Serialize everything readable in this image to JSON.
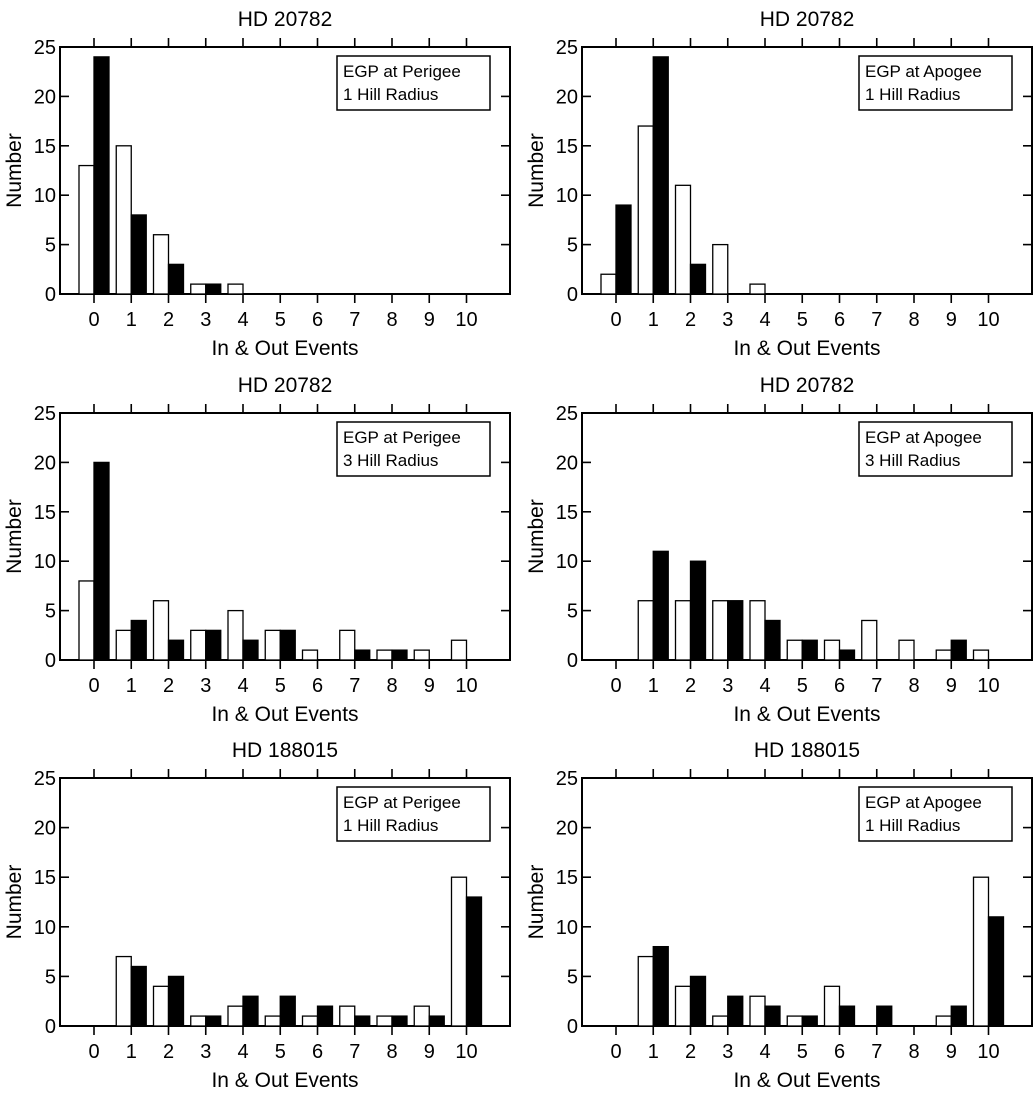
{
  "figure": {
    "bar_colors": {
      "open": "#ffffff",
      "filled": "#000000"
    }
  },
  "chart_data": [
    {
      "type": "bar",
      "title": "HD 20782",
      "xlabel": "In & Out Events",
      "ylabel": "Number",
      "ylim": [
        0,
        25
      ],
      "yticks": [
        0,
        5,
        10,
        15,
        20,
        25
      ],
      "categories": [
        "0",
        "1",
        "2",
        "3",
        "4",
        "5",
        "6",
        "7",
        "8",
        "9",
        "10"
      ],
      "legend": [
        "EGP at Perigee",
        "1 Hill Radius"
      ],
      "legend_position": "top-right",
      "series": [
        {
          "fill": "open",
          "values": [
            13,
            15,
            6,
            1,
            1,
            0,
            0,
            0,
            0,
            0,
            0
          ]
        },
        {
          "fill": "filled",
          "values": [
            24,
            8,
            3,
            1,
            0,
            0,
            0,
            0,
            0,
            0,
            0
          ]
        }
      ]
    },
    {
      "type": "bar",
      "title": "HD 20782",
      "xlabel": "In & Out Events",
      "ylabel": "Number",
      "ylim": [
        0,
        25
      ],
      "yticks": [
        0,
        5,
        10,
        15,
        20,
        25
      ],
      "categories": [
        "0",
        "1",
        "2",
        "3",
        "4",
        "5",
        "6",
        "7",
        "8",
        "9",
        "10"
      ],
      "legend": [
        "EGP at Apogee",
        "1 Hill Radius"
      ],
      "legend_position": "top-right",
      "series": [
        {
          "fill": "open",
          "values": [
            2,
            17,
            11,
            5,
            1,
            0,
            0,
            0,
            0,
            0,
            0
          ]
        },
        {
          "fill": "filled",
          "values": [
            9,
            24,
            3,
            0,
            0,
            0,
            0,
            0,
            0,
            0,
            0
          ]
        }
      ]
    },
    {
      "type": "bar",
      "title": "HD 20782",
      "xlabel": "In & Out Events",
      "ylabel": "Number",
      "ylim": [
        0,
        25
      ],
      "yticks": [
        0,
        5,
        10,
        15,
        20,
        25
      ],
      "categories": [
        "0",
        "1",
        "2",
        "3",
        "4",
        "5",
        "6",
        "7",
        "8",
        "9",
        "10"
      ],
      "legend": [
        "EGP at Perigee",
        "3 Hill Radius"
      ],
      "legend_position": "top-right",
      "series": [
        {
          "fill": "open",
          "values": [
            8,
            3,
            6,
            3,
            5,
            3,
            1,
            3,
            1,
            1,
            2
          ]
        },
        {
          "fill": "filled",
          "values": [
            20,
            4,
            2,
            3,
            2,
            3,
            0,
            1,
            1,
            0,
            0
          ]
        }
      ]
    },
    {
      "type": "bar",
      "title": "HD 20782",
      "xlabel": "In & Out Events",
      "ylabel": "Number",
      "ylim": [
        0,
        25
      ],
      "yticks": [
        0,
        5,
        10,
        15,
        20,
        25
      ],
      "categories": [
        "0",
        "1",
        "2",
        "3",
        "4",
        "5",
        "6",
        "7",
        "8",
        "9",
        "10"
      ],
      "legend": [
        "EGP at Apogee",
        "3 Hill Radius"
      ],
      "legend_position": "top-right",
      "series": [
        {
          "fill": "open",
          "values": [
            0,
            6,
            6,
            6,
            6,
            2,
            2,
            4,
            2,
            1,
            1
          ]
        },
        {
          "fill": "filled",
          "values": [
            0,
            11,
            10,
            6,
            4,
            2,
            1,
            0,
            0,
            2,
            0
          ]
        }
      ]
    },
    {
      "type": "bar",
      "title": "HD 188015",
      "xlabel": "In & Out Events",
      "ylabel": "Number",
      "ylim": [
        0,
        25
      ],
      "yticks": [
        0,
        5,
        10,
        15,
        20,
        25
      ],
      "categories": [
        "0",
        "1",
        "2",
        "3",
        "4",
        "5",
        "6",
        "7",
        "8",
        "9",
        "10"
      ],
      "legend": [
        "EGP at Perigee",
        "1 Hill Radius"
      ],
      "legend_position": "top-right",
      "series": [
        {
          "fill": "open",
          "values": [
            0,
            7,
            4,
            1,
            2,
            1,
            1,
            2,
            1,
            2,
            15
          ]
        },
        {
          "fill": "filled",
          "values": [
            0,
            6,
            5,
            1,
            3,
            3,
            2,
            1,
            1,
            1,
            13
          ]
        }
      ]
    },
    {
      "type": "bar",
      "title": "HD 188015",
      "xlabel": "In & Out Events",
      "ylabel": "Number",
      "ylim": [
        0,
        25
      ],
      "yticks": [
        0,
        5,
        10,
        15,
        20,
        25
      ],
      "categories": [
        "0",
        "1",
        "2",
        "3",
        "4",
        "5",
        "6",
        "7",
        "8",
        "9",
        "10"
      ],
      "legend": [
        "EGP at Apogee",
        "1 Hill Radius"
      ],
      "legend_position": "top-right",
      "series": [
        {
          "fill": "open",
          "values": [
            0,
            7,
            4,
            1,
            3,
            1,
            4,
            0,
            0,
            1,
            15
          ]
        },
        {
          "fill": "filled",
          "values": [
            0,
            8,
            5,
            3,
            2,
            1,
            2,
            2,
            0,
            2,
            11
          ]
        }
      ]
    }
  ]
}
